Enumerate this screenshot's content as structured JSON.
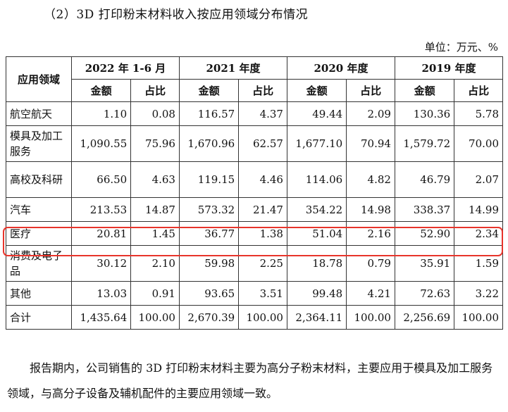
{
  "heading": "（2）3D 打印粉末材料收入按应用领域分布情况",
  "unit": "单位：万元、%",
  "table": {
    "col_header": "应用领域",
    "periods": [
      "2022 年 1-6 月",
      "2021 年度",
      "2020 年度",
      "2019 年度"
    ],
    "sub_headers": [
      "金额",
      "占比"
    ],
    "rows": [
      {
        "cat": "航空航天",
        "vals": [
          "1.10",
          "0.08",
          "116.57",
          "4.37",
          "49.44",
          "2.09",
          "130.36",
          "5.78"
        ]
      },
      {
        "cat": "模具及加工服务",
        "vals": [
          "1,090.55",
          "75.96",
          "1,670.96",
          "62.57",
          "1,677.10",
          "70.94",
          "1,579.72",
          "70.00"
        ]
      },
      {
        "cat": "高校及科研",
        "vals": [
          "66.50",
          "4.63",
          "119.15",
          "4.46",
          "114.06",
          "4.82",
          "46.79",
          "2.07"
        ]
      },
      {
        "cat": "汽车",
        "vals": [
          "213.53",
          "14.87",
          "573.32",
          "21.47",
          "354.22",
          "14.98",
          "338.37",
          "14.99"
        ]
      },
      {
        "cat": "医疗",
        "vals": [
          "20.81",
          "1.45",
          "36.77",
          "1.38",
          "51.04",
          "2.16",
          "52.90",
          "2.34"
        ]
      },
      {
        "cat": "消费及电子品",
        "vals": [
          "30.12",
          "2.10",
          "59.98",
          "2.25",
          "18.78",
          "0.79",
          "35.91",
          "1.59"
        ]
      },
      {
        "cat": "其他",
        "vals": [
          "13.03",
          "0.91",
          "93.65",
          "3.51",
          "99.48",
          "4.21",
          "72.63",
          "3.22"
        ]
      },
      {
        "cat": "合计",
        "vals": [
          "1,435.64",
          "100.00",
          "2,670.39",
          "100.00",
          "2,364.11",
          "100.00",
          "2,256.69",
          "100.00"
        ]
      }
    ]
  },
  "highlight_color": "#e8342b",
  "paragraph": "报告期内，公司销售的 3D 打印粉末材料主要为高分子粉末材料，主要应用于模具及加工服务领域，与高分子设备及辅机配件的主要应用领域一致。"
}
